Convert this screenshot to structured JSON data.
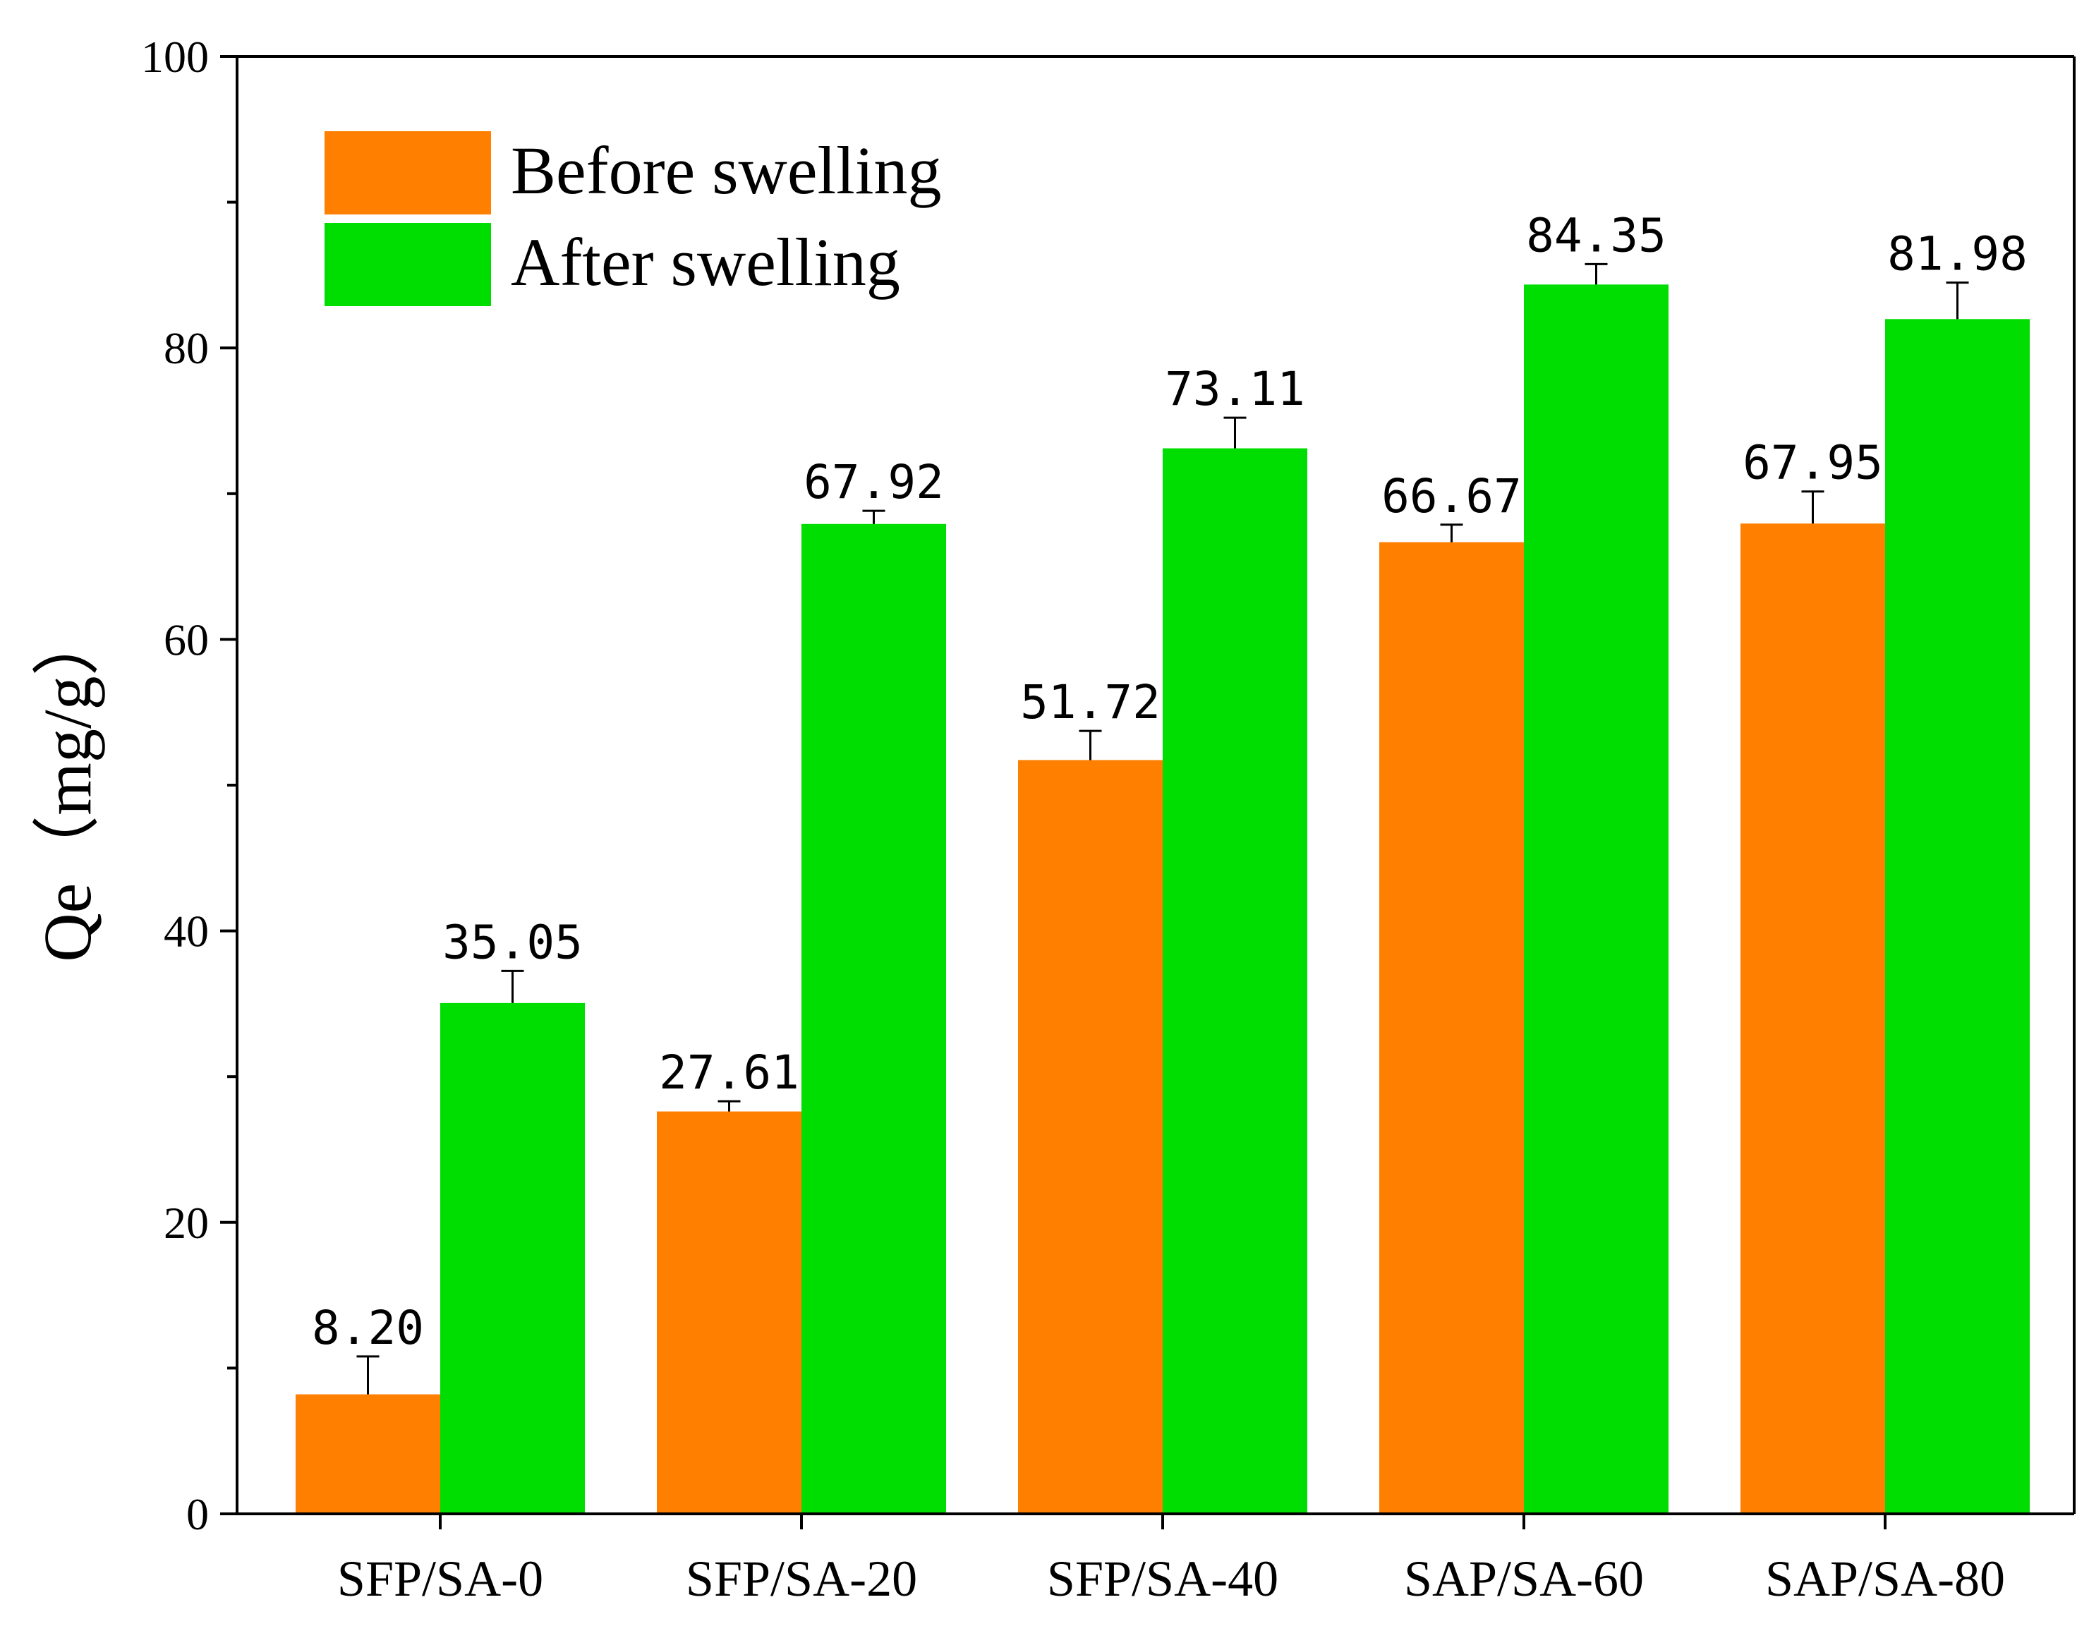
{
  "chart_data": {
    "type": "bar",
    "title": "",
    "xlabel": "",
    "ylabel": "Qe（mg/g）",
    "ylim": [
      0,
      100
    ],
    "yticks": [
      0,
      20,
      40,
      60,
      80,
      100
    ],
    "grid": false,
    "legend_position": "top-left",
    "categories": [
      "SFP/SA-0",
      "SFP/SA-20",
      "SFP/SA-40",
      "SAP/SA-60",
      "SAP/SA-80"
    ],
    "series": [
      {
        "name": "Before swelling",
        "color": "#ff7f00",
        "values": [
          8.2,
          27.61,
          51.72,
          66.67,
          67.95
        ],
        "labels": [
          "8.20",
          "27.61",
          "51.72",
          "66.67",
          "67.95"
        ],
        "errors": [
          2.6,
          0.7,
          2.0,
          1.2,
          2.2
        ]
      },
      {
        "name": "After swelling",
        "color": "#00dd00",
        "values": [
          35.05,
          67.92,
          73.11,
          84.35,
          81.98
        ],
        "labels": [
          "35.05",
          "67.92",
          "73.11",
          "84.35",
          "81.98"
        ],
        "errors": [
          2.2,
          0.9,
          2.1,
          1.4,
          2.5
        ]
      }
    ]
  }
}
